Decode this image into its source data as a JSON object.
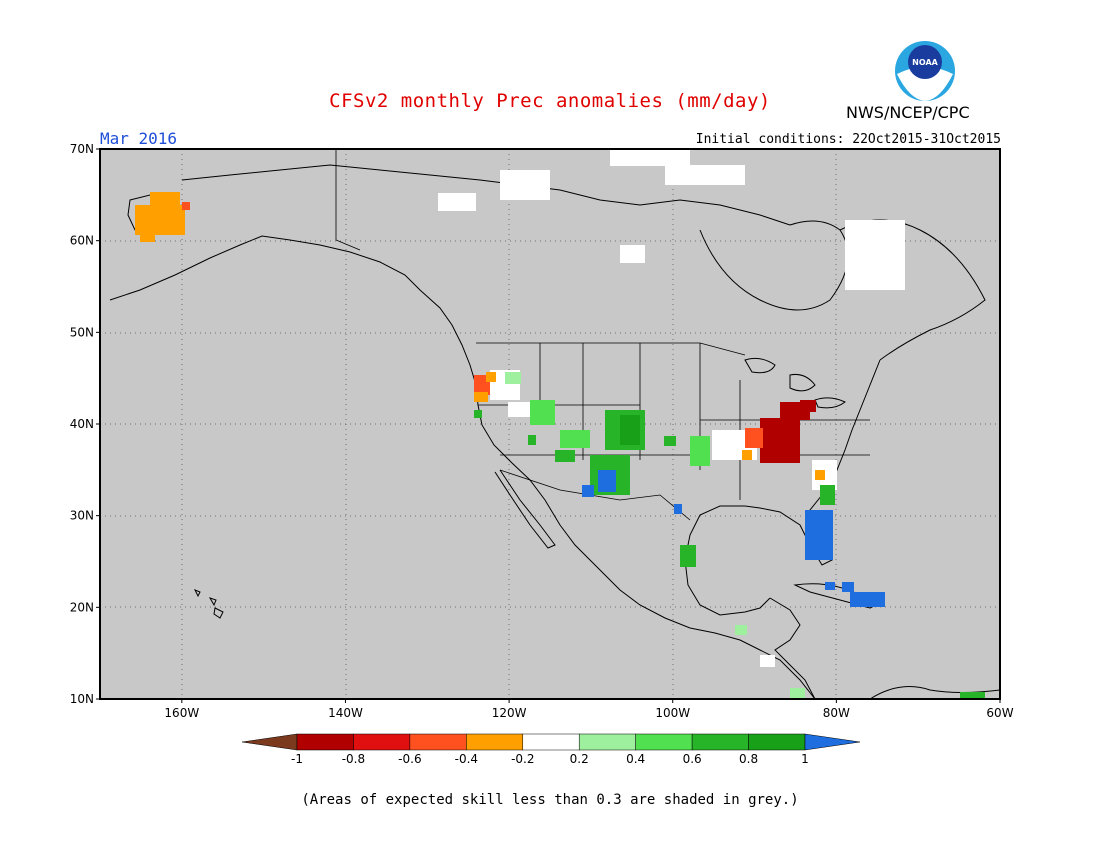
{
  "title": "CFSv2 monthly Prec anomalies (mm/day)",
  "organization": "NWS/NCEP/CPC",
  "logo_text": "NOAA",
  "valid_month": "Mar 2016",
  "initial_conditions": "Initial conditions: 22Oct2015-31Oct2015",
  "footnote": "(Areas of expected skill less than 0.3 are shaded in grey.)",
  "map": {
    "lon_range": [
      -170,
      -60
    ],
    "lat_range": [
      10,
      70
    ],
    "background_color": "#c8c8c8",
    "gridlines": "dotted",
    "lat_labels": [
      "70N",
      "60N",
      "50N",
      "40N",
      "30N",
      "20N",
      "10N"
    ],
    "lon_labels": [
      "160W",
      "140W",
      "120W",
      "100W",
      "80W",
      "60W"
    ]
  },
  "colorbar": {
    "labels": [
      "-1",
      "-0.8",
      "-0.6",
      "-0.4",
      "-0.2",
      "0.2",
      "0.4",
      "0.6",
      "0.8",
      "1"
    ],
    "colors": [
      "#7b3a1e",
      "#b00000",
      "#e01010",
      "#ff5020",
      "#ffa000",
      "#ffffff",
      "#9ef09e",
      "#50e050",
      "#28b428",
      "#18a018",
      "#1e6ee0"
    ]
  },
  "anomaly_regions": [
    {
      "label": "Alaska west coast",
      "category": "-0.4",
      "color": "#ffa000"
    },
    {
      "label": "Alaska west coast",
      "category": "-0.6",
      "color": "#ff5020"
    },
    {
      "label": "Pacific Northwest coast",
      "category": "-0.6",
      "color": "#ff5020"
    },
    {
      "label": "Ohio Valley",
      "category": "-1",
      "color": "#b00000"
    },
    {
      "label": "Southwest US",
      "category": "0.6",
      "color": "#50e050"
    },
    {
      "label": "Southwest US",
      "category": "0.8",
      "color": "#28b428"
    },
    {
      "label": "Southwest US",
      "category": "1",
      "color": "#1e6ee0"
    },
    {
      "label": "Florida",
      "category": "1",
      "color": "#1e6ee0"
    },
    {
      "label": "Cuba / Bahamas",
      "category": "1",
      "color": "#1e6ee0"
    },
    {
      "label": "Texas coast",
      "category": "0.8",
      "color": "#28b428"
    }
  ]
}
